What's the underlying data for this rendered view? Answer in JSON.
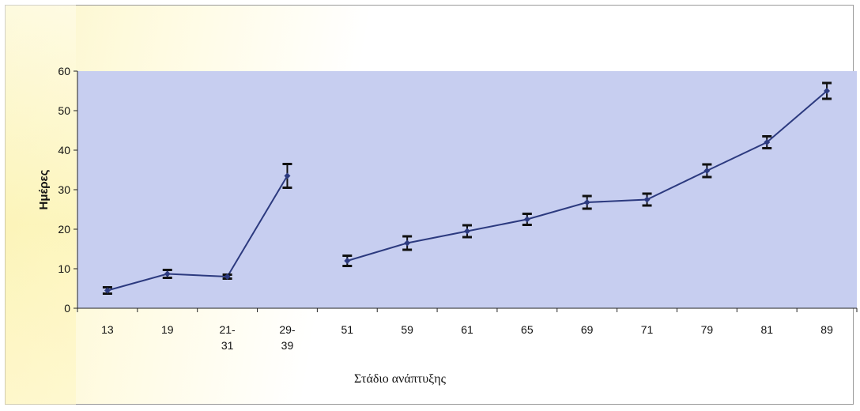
{
  "chart_data": {
    "type": "line",
    "ylabel": "Ημέρες",
    "xlabel": "Στάδιο ανάπτυξης",
    "ylim": [
      0,
      60
    ],
    "yticks": [
      0,
      10,
      20,
      30,
      40,
      50,
      60
    ],
    "grid": false,
    "legend": "none",
    "categories": [
      "13",
      "19",
      "21-\n31",
      "29-\n39",
      "51",
      "59",
      "61",
      "65",
      "69",
      "71",
      "79",
      "81",
      "89"
    ],
    "series": [
      {
        "values": [
          4.5,
          8.7,
          8,
          33.5,
          12,
          16.5,
          19.5,
          22.5,
          26.8,
          27.5,
          34.8,
          42,
          55
        ],
        "error": [
          0.8,
          1.0,
          0.5,
          3.0,
          1.3,
          1.7,
          1.5,
          1.4,
          1.6,
          1.5,
          1.6,
          1.5,
          2.0
        ],
        "segments": [
          [
            0,
            3
          ],
          [
            4,
            12
          ]
        ]
      }
    ],
    "colors": {
      "plot_bg": "#c7cef0",
      "line": "#2c3a7f",
      "error_bar": "#111111"
    }
  }
}
